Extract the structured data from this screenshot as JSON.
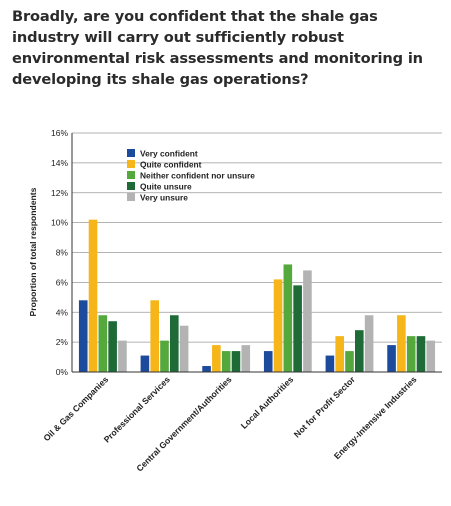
{
  "title": "Broadly, are you confident that the shale gas industry will carry out sufficiently robust environmental risk assessments and monitoring in developing its shale gas operations?",
  "chart_data": {
    "type": "bar",
    "ylabel": "Proportion of total respondents",
    "ylim": [
      0,
      16
    ],
    "yticks": [
      "0%",
      "2%",
      "4%",
      "6%",
      "8%",
      "10%",
      "12%",
      "14%",
      "16%"
    ],
    "grid": true,
    "legend_position": "top-left",
    "categories": [
      "Oil & Gas Companies",
      "Professional Services",
      "Central Government/Authorities",
      "Local Authorities",
      "Not for Profit Sector",
      "Energy-Intensive Industries"
    ],
    "series": [
      {
        "name": "Very confident",
        "color": "#1c4a9c",
        "values": [
          4.8,
          1.1,
          0.4,
          1.4,
          1.1,
          1.8
        ]
      },
      {
        "name": "Quite confident",
        "color": "#f6b519",
        "values": [
          10.2,
          4.8,
          1.8,
          6.2,
          2.4,
          3.8
        ]
      },
      {
        "name": "Neither confident nor unsure",
        "color": "#54a83c",
        "values": [
          3.8,
          2.1,
          1.4,
          7.2,
          1.4,
          2.4
        ]
      },
      {
        "name": "Quite unsure",
        "color": "#1f6b38",
        "values": [
          3.4,
          3.8,
          1.4,
          5.8,
          2.8,
          2.4
        ]
      },
      {
        "name": "Very unsure",
        "color": "#b3b3b3",
        "values": [
          2.1,
          3.1,
          1.8,
          6.8,
          3.8,
          2.1
        ]
      }
    ]
  }
}
